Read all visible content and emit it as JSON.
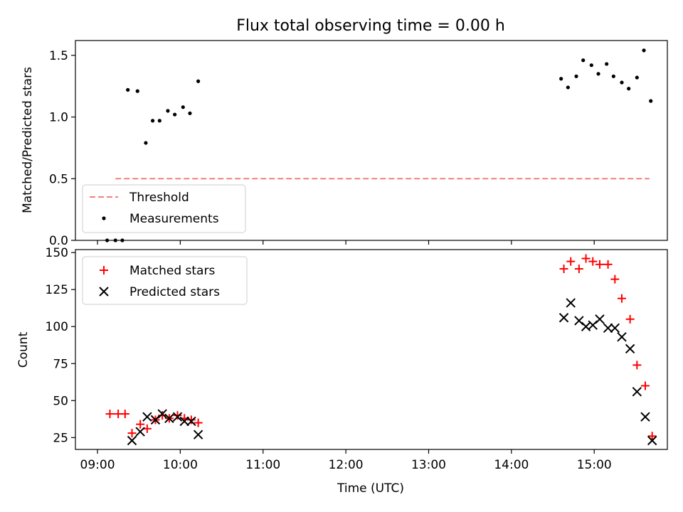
{
  "title": "Flux total observing time = 0.00 h",
  "xlabel": "Time (UTC)",
  "x_ticks": [
    "09:00",
    "10:00",
    "11:00",
    "12:00",
    "13:00",
    "14:00",
    "15:00"
  ],
  "colors": {
    "threshold": "#f08080",
    "measurements": "#000000",
    "matched": "#ff0000",
    "predicted": "#000000"
  },
  "chart_data": [
    {
      "type": "scatter",
      "ylabel": "Matched/Predicted stars",
      "xlim": [
        "08:44",
        "15:53"
      ],
      "ylim": [
        0,
        1.62
      ],
      "y_ticks": [
        0.0,
        0.5,
        1.0,
        1.5
      ],
      "y_tick_labels": [
        "0.0",
        "0.5",
        "1.0",
        "1.5"
      ],
      "legend": {
        "location": "lower-left",
        "entries": [
          "Threshold",
          "Measurements"
        ]
      },
      "threshold": {
        "name": "Threshold",
        "value": 0.5,
        "x_range": [
          "09:13",
          "15:40"
        ],
        "style": "dashed"
      },
      "series": [
        {
          "name": "Measurements",
          "marker": "dot",
          "points": [
            [
              "09:07",
              0.0
            ],
            [
              "09:13",
              0.0
            ],
            [
              "09:18",
              0.0
            ],
            [
              "09:22",
              1.22
            ],
            [
              "09:29",
              1.21
            ],
            [
              "09:35",
              0.79
            ],
            [
              "09:40",
              0.97
            ],
            [
              "09:45",
              0.97
            ],
            [
              "09:51",
              1.05
            ],
            [
              "09:56",
              1.02
            ],
            [
              "10:02",
              1.08
            ],
            [
              "10:07",
              1.03
            ],
            [
              "10:13",
              1.29
            ],
            [
              "14:36",
              1.31
            ],
            [
              "14:41",
              1.24
            ],
            [
              "14:47",
              1.33
            ],
            [
              "14:52",
              1.46
            ],
            [
              "14:58",
              1.42
            ],
            [
              "15:03",
              1.35
            ],
            [
              "15:09",
              1.43
            ],
            [
              "15:14",
              1.33
            ],
            [
              "15:20",
              1.28
            ],
            [
              "15:25",
              1.23
            ],
            [
              "15:31",
              1.32
            ],
            [
              "15:36",
              1.54
            ],
            [
              "15:41",
              1.13
            ]
          ]
        }
      ]
    },
    {
      "type": "scatter",
      "ylabel": "Count",
      "xlim": [
        "08:44",
        "15:53"
      ],
      "ylim": [
        17,
        152
      ],
      "y_ticks": [
        25,
        50,
        75,
        100,
        125,
        150
      ],
      "y_tick_labels": [
        "25",
        "50",
        "75",
        "100",
        "125",
        "150"
      ],
      "legend": {
        "location": "upper-left",
        "entries": [
          "Matched stars",
          "Predicted stars"
        ]
      },
      "series": [
        {
          "name": "Matched stars",
          "marker": "plus",
          "points": [
            [
              "09:09",
              41
            ],
            [
              "09:15",
              41
            ],
            [
              "09:20",
              41
            ],
            [
              "09:25",
              28
            ],
            [
              "09:31",
              34
            ],
            [
              "09:36",
              31
            ],
            [
              "09:42",
              37
            ],
            [
              "09:47",
              40
            ],
            [
              "09:52",
              38
            ],
            [
              "09:58",
              40
            ],
            [
              "10:03",
              38
            ],
            [
              "10:08",
              37
            ],
            [
              "10:13",
              35
            ],
            [
              "14:38",
              139
            ],
            [
              "14:43",
              144
            ],
            [
              "14:49",
              139
            ],
            [
              "14:54",
              146
            ],
            [
              "14:59",
              144
            ],
            [
              "15:04",
              142
            ],
            [
              "15:10",
              142
            ],
            [
              "15:15",
              132
            ],
            [
              "15:20",
              119
            ],
            [
              "15:26",
              105
            ],
            [
              "15:31",
              74
            ],
            [
              "15:37",
              60
            ],
            [
              "15:42",
              26
            ]
          ]
        },
        {
          "name": "Predicted stars",
          "marker": "x",
          "points": [
            [
              "09:25",
              23
            ],
            [
              "09:31",
              29
            ],
            [
              "09:36",
              39
            ],
            [
              "09:42",
              37
            ],
            [
              "09:47",
              41
            ],
            [
              "09:52",
              38
            ],
            [
              "09:58",
              39
            ],
            [
              "10:03",
              36
            ],
            [
              "10:08",
              36
            ],
            [
              "10:13",
              27
            ],
            [
              "14:38",
              106
            ],
            [
              "14:43",
              116
            ],
            [
              "14:49",
              104
            ],
            [
              "14:54",
              100
            ],
            [
              "14:59",
              101
            ],
            [
              "15:04",
              105
            ],
            [
              "15:10",
              99
            ],
            [
              "15:15",
              99
            ],
            [
              "15:20",
              93
            ],
            [
              "15:26",
              85
            ],
            [
              "15:31",
              56
            ],
            [
              "15:37",
              39
            ],
            [
              "15:42",
              23
            ]
          ]
        }
      ]
    }
  ]
}
